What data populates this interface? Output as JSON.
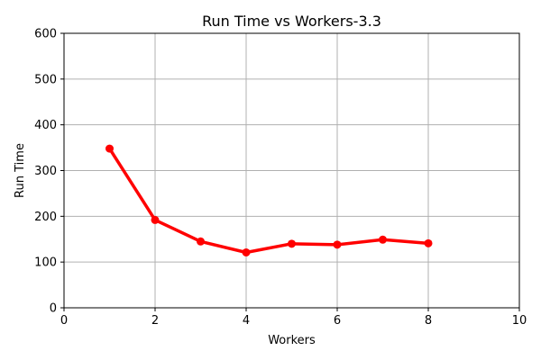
{
  "chart_data": {
    "type": "line",
    "title": "Run Time vs Workers-3.3",
    "xlabel": "Workers",
    "ylabel": "Run Time",
    "xlim": [
      0,
      10
    ],
    "ylim": [
      0,
      600
    ],
    "x_ticks": [
      0,
      2,
      4,
      6,
      8,
      10
    ],
    "y_ticks": [
      0,
      100,
      200,
      300,
      400,
      500,
      600
    ],
    "grid": true,
    "series": [
      {
        "color": "#ff0000",
        "x": [
          1,
          2,
          3,
          4,
          5,
          6,
          7,
          8
        ],
        "y": [
          348,
          192,
          145,
          121,
          140,
          138,
          149,
          141
        ]
      }
    ]
  }
}
